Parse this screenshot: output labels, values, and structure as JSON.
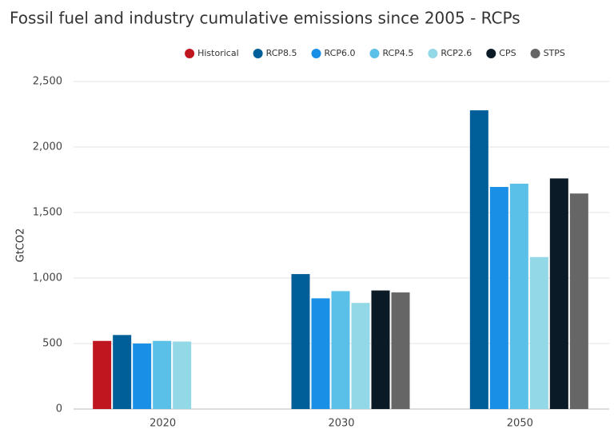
{
  "chart_data": {
    "type": "bar",
    "title": "Fossil fuel and industry cumulative emissions since 2005 - RCPs",
    "y_label": "GtCO2",
    "categories": [
      "2020",
      "2030",
      "2050"
    ],
    "series": [
      {
        "name": "Historical",
        "color": "#c0161f",
        "values": [
          520,
          null,
          null
        ]
      },
      {
        "name": "RCP8.5",
        "color": "#005f99",
        "values": [
          565,
          1030,
          2280
        ]
      },
      {
        "name": "RCP6.0",
        "color": "#1a8fe6",
        "values": [
          500,
          845,
          1695
        ]
      },
      {
        "name": "RCP4.5",
        "color": "#5bc0e8",
        "values": [
          520,
          900,
          1720
        ]
      },
      {
        "name": "RCP2.6",
        "color": "#93d8e6",
        "values": [
          515,
          810,
          1160
        ]
      },
      {
        "name": "CPS",
        "color": "#0a1a26",
        "values": [
          null,
          905,
          1760
        ]
      },
      {
        "name": "STPS",
        "color": "#666666",
        "values": [
          null,
          890,
          1645
        ]
      }
    ],
    "ylim": [
      0,
      2500
    ],
    "yticks": [
      0,
      500,
      {
        "value": 1000,
        "label": "1,000"
      },
      {
        "value": 1500,
        "label": "1,500"
      },
      {
        "value": 2000,
        "label": "2,000"
      },
      {
        "value": 2500,
        "label": "2,500"
      }
    ],
    "grid": true,
    "legend": "top"
  }
}
